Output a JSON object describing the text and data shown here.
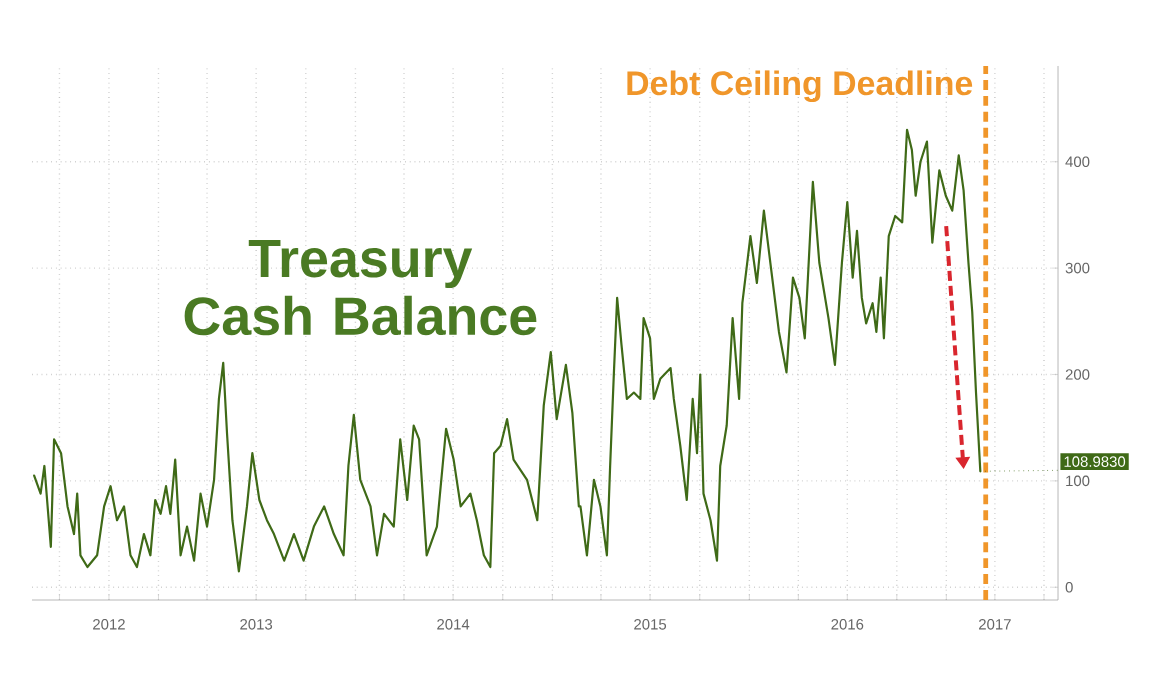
{
  "chart_data": {
    "type": "line",
    "title": "Treasury Cash Balance",
    "x": [
      "2012-05-15",
      "2012-05-27",
      "2012-06-03",
      "2012-06-15",
      "2012-06-21",
      "2012-07-04",
      "2012-07-16",
      "2012-07-28",
      "2012-08-03",
      "2012-08-09",
      "2012-08-22",
      "2012-09-09",
      "2012-09-22",
      "2012-10-04",
      "2012-10-16",
      "2012-10-29",
      "2012-11-10",
      "2012-11-22",
      "2012-12-05",
      "2012-12-17",
      "2012-12-26",
      "2013-01-05",
      "2013-01-15",
      "2013-01-23",
      "2013-02-01",
      "2013-02-11",
      "2013-02-23",
      "2013-03-08",
      "2013-03-20",
      "2013-04-01",
      "2013-04-14",
      "2013-04-23",
      "2013-05-01",
      "2013-05-08",
      "2013-05-18",
      "2013-05-30",
      "2013-06-14",
      "2013-06-24",
      "2013-07-07",
      "2013-07-21",
      "2013-08-03",
      "2013-08-22",
      "2013-09-09",
      "2013-09-27",
      "2013-10-16",
      "2013-11-04",
      "2013-11-22",
      "2013-12-10",
      "2013-12-19",
      "2013-12-29",
      "2014-01-10",
      "2014-01-29",
      "2014-02-10",
      "2014-02-23",
      "2014-03-13",
      "2014-03-25",
      "2014-04-07",
      "2014-04-19",
      "2014-04-29",
      "2014-05-13",
      "2014-06-01",
      "2014-06-18",
      "2014-07-02",
      "2014-07-15",
      "2014-08-02",
      "2014-08-14",
      "2014-08-27",
      "2014-09-08",
      "2014-09-15",
      "2014-09-27",
      "2014-10-09",
      "2014-10-21",
      "2014-11-15",
      "2014-12-04",
      "2014-12-16",
      "2014-12-29",
      "2015-01-09",
      "2015-01-26",
      "2015-02-07",
      "2015-02-19",
      "2015-02-22",
      "2015-03-06",
      "2015-03-19",
      "2015-03-31",
      "2015-04-12",
      "2015-04-18",
      "2015-04-25",
      "2015-05-01",
      "2015-05-09",
      "2015-05-19",
      "2015-06-01",
      "2015-06-13",
      "2015-06-19",
      "2015-07-01",
      "2015-07-08",
      "2015-07-20",
      "2015-08-08",
      "2015-08-14",
      "2015-08-26",
      "2015-09-07",
      "2015-09-18",
      "2015-09-26",
      "2015-10-02",
      "2015-10-08",
      "2015-10-21",
      "2015-11-02",
      "2015-11-08",
      "2015-11-20",
      "2015-12-01",
      "2015-12-13",
      "2015-12-19",
      "2016-01-03",
      "2016-01-15",
      "2016-01-28",
      "2016-02-09",
      "2016-02-25",
      "2016-03-10",
      "2016-03-22",
      "2016-04-03",
      "2016-04-13",
      "2016-04-28",
      "2016-05-10",
      "2016-05-27",
      "2016-06-08",
      "2016-06-21",
      "2016-07-01",
      "2016-07-11",
      "2016-07-19",
      "2016-07-28",
      "2016-08-05",
      "2016-08-17",
      "2016-08-24",
      "2016-09-01",
      "2016-09-07",
      "2016-09-16",
      "2016-09-28",
      "2016-10-11",
      "2016-10-20",
      "2016-10-29",
      "2016-11-05",
      "2016-11-14",
      "2016-11-26",
      "2016-12-06",
      "2016-12-19",
      "2016-12-31",
      "2017-01-12",
      "2017-01-24",
      "2017-02-02",
      "2017-02-11",
      "2017-02-18",
      "2017-02-25",
      "2017-03-05"
    ],
    "series": [
      {
        "color": "#3f6a17",
        "values": [
          105,
          88,
          114,
          38,
          139,
          126,
          76,
          50,
          88,
          30,
          19,
          30,
          76,
          95,
          63,
          76,
          30,
          19,
          50,
          30,
          82,
          69,
          95,
          69,
          120,
          30,
          57,
          25,
          88,
          57,
          101,
          177,
          211,
          145,
          63,
          15,
          76,
          126,
          82,
          63,
          50,
          25,
          50,
          25,
          57,
          76,
          50,
          30,
          114,
          162,
          101,
          76,
          30,
          69,
          57,
          139,
          82,
          152,
          139,
          30,
          57,
          149,
          120,
          76,
          88,
          63,
          30,
          19,
          126,
          133,
          158,
          120,
          101,
          63,
          171,
          221,
          158,
          209,
          164,
          76,
          76,
          30,
          101,
          76,
          30,
          114,
          202,
          272,
          228,
          177,
          183,
          177,
          253,
          234,
          177,
          196,
          206,
          177,
          133,
          82,
          177,
          126,
          200,
          88,
          63,
          25,
          114,
          152,
          253,
          177,
          267,
          330,
          286,
          354,
          305,
          240,
          202,
          291,
          272,
          234,
          381,
          305,
          253,
          209,
          305,
          362,
          291,
          335,
          272,
          248,
          267,
          240,
          291,
          234,
          330,
          349,
          343,
          430,
          411,
          368,
          400,
          419,
          324,
          392,
          368,
          354,
          406,
          373,
          305,
          259,
          183,
          108.983
        ]
      }
    ],
    "xlim": [
      "2012-05-11",
      "2017-07-27"
    ],
    "ylim": [
      -12,
      490
    ],
    "xticks": [
      {
        "value": "2012-07-01",
        "label": null
      },
      {
        "value": "2012-10-01",
        "label": "2012"
      },
      {
        "value": "2013-01-01",
        "label": null
      },
      {
        "value": "2013-04-01",
        "label": null
      },
      {
        "value": "2013-07-01",
        "label": "2013"
      },
      {
        "value": "2013-10-01",
        "label": null
      },
      {
        "value": "2014-01-01",
        "label": null
      },
      {
        "value": "2014-04-01",
        "label": null
      },
      {
        "value": "2014-07-01",
        "label": "2014"
      },
      {
        "value": "2014-10-01",
        "label": null
      },
      {
        "value": "2015-01-01",
        "label": null
      },
      {
        "value": "2015-04-01",
        "label": null
      },
      {
        "value": "2015-07-01",
        "label": "2015"
      },
      {
        "value": "2015-10-01",
        "label": null
      },
      {
        "value": "2016-01-01",
        "label": null
      },
      {
        "value": "2016-04-01",
        "label": null
      },
      {
        "value": "2016-07-01",
        "label": "2016"
      },
      {
        "value": "2016-10-01",
        "label": null
      },
      {
        "value": "2017-01-01",
        "label": null
      },
      {
        "value": "2017-04-01",
        "label": "2017"
      },
      {
        "value": "2017-07-01",
        "label": null
      }
    ],
    "yticks": [
      0,
      100,
      200,
      300,
      400
    ],
    "grid": true,
    "ref_lines": [
      {
        "axis": "x",
        "value": "2017-03-15",
        "label": "Debt Ceiling Deadline",
        "color": "#f0962a",
        "line_style": "dashed"
      }
    ],
    "annotations": [
      {
        "text": "108.9830",
        "x": "2017-03-05",
        "y": 108.983
      }
    ]
  }
}
